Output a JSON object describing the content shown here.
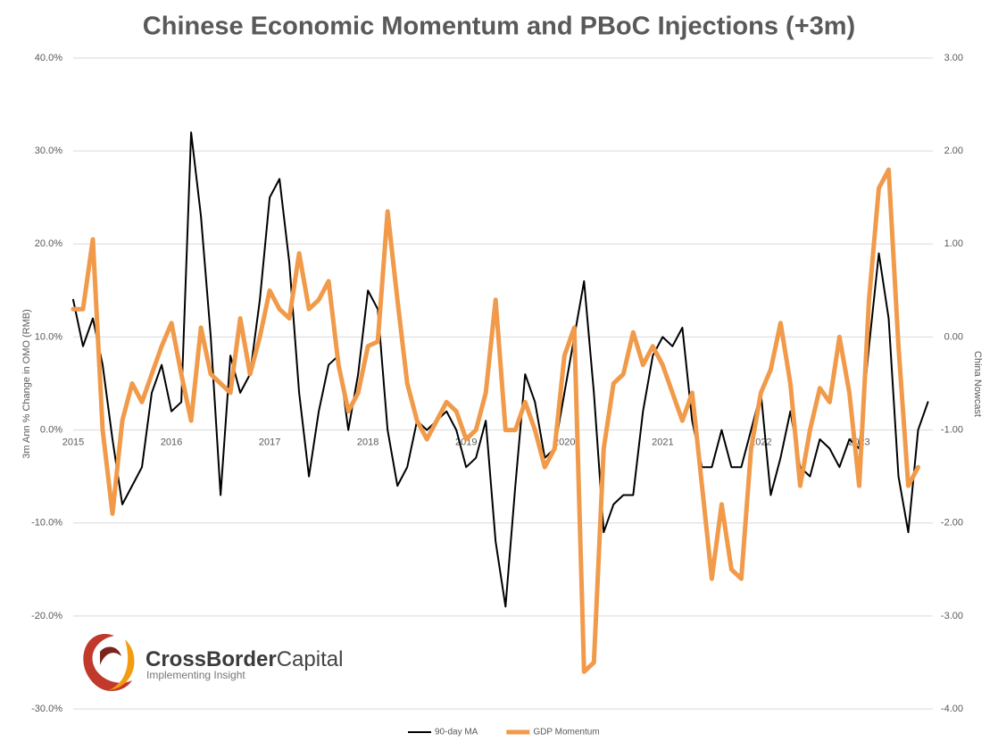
{
  "chart_data": {
    "type": "line",
    "title": "Chinese Economic Momentum and PBoC Injections (+3m)",
    "y_label": "3m Ann % Change in OMO (RMB)",
    "y2_label": "China Nowcast",
    "logo_bold": "CrossBorder",
    "logo_light": "Capital",
    "logo_tagline": "Implementing Insight",
    "grid": true,
    "legend": "bottom",
    "xlim": [
      2015,
      2023.75
    ],
    "xticks": [
      2015,
      2016,
      2017,
      2018,
      2019,
      2020,
      2021,
      2022,
      2023
    ],
    "ylim": [
      -30,
      40
    ],
    "yticks": [
      {
        "value": -30,
        "label": "-30.0%"
      },
      {
        "value": -20,
        "label": "-20.0%"
      },
      {
        "value": -10,
        "label": "-10.0%"
      },
      {
        "value": 0,
        "label": "0.0%"
      },
      {
        "value": 10,
        "label": "10.0%"
      },
      {
        "value": 20,
        "label": "20.0%"
      },
      {
        "value": 30,
        "label": "30.0%"
      },
      {
        "value": 40,
        "label": "40.0%"
      }
    ],
    "y2lim": [
      -4,
      3
    ],
    "y2ticks": [
      {
        "value": -4,
        "label": "-4.00"
      },
      {
        "value": -3,
        "label": "-3.00"
      },
      {
        "value": -2,
        "label": "-2.00"
      },
      {
        "value": -1,
        "label": "-1.00"
      },
      {
        "value": 0,
        "label": "0.00"
      },
      {
        "value": 1,
        "label": "1.00"
      },
      {
        "value": 2,
        "label": "2.00"
      },
      {
        "value": 3,
        "label": "3.00"
      }
    ],
    "x": [
      2015.0,
      2015.1,
      2015.2,
      2015.3,
      2015.4,
      2015.5,
      2015.6,
      2015.7,
      2015.8,
      2015.9,
      2016.0,
      2016.1,
      2016.2,
      2016.3,
      2016.4,
      2016.5,
      2016.6,
      2016.7,
      2016.8,
      2016.9,
      2017.0,
      2017.1,
      2017.2,
      2017.3,
      2017.4,
      2017.5,
      2017.6,
      2017.7,
      2017.8,
      2017.9,
      2018.0,
      2018.1,
      2018.2,
      2018.3,
      2018.4,
      2018.5,
      2018.6,
      2018.7,
      2018.8,
      2018.9,
      2019.0,
      2019.1,
      2019.2,
      2019.3,
      2019.4,
      2019.5,
      2019.6,
      2019.7,
      2019.8,
      2019.9,
      2020.0,
      2020.1,
      2020.2,
      2020.3,
      2020.4,
      2020.5,
      2020.6,
      2020.7,
      2020.8,
      2020.9,
      2021.0,
      2021.1,
      2021.2,
      2021.3,
      2021.4,
      2021.5,
      2021.6,
      2021.7,
      2021.8,
      2021.9,
      2022.0,
      2022.1,
      2022.2,
      2022.3,
      2022.4,
      2022.5,
      2022.6,
      2022.7,
      2022.8,
      2022.9,
      2023.0,
      2023.1,
      2023.2,
      2023.3,
      2023.4,
      2023.5,
      2023.6,
      2023.7
    ],
    "series": [
      {
        "name": "90-day MA",
        "color": "#000000",
        "width": 2,
        "axis": "y",
        "values": [
          14,
          9,
          12,
          7,
          -1,
          -8,
          -6,
          -4,
          4,
          7,
          2,
          3,
          32,
          23,
          10,
          -7,
          8,
          4,
          6,
          14,
          25,
          27,
          18,
          4,
          -5,
          2,
          7,
          8,
          0,
          6,
          15,
          13,
          0,
          -6,
          -4,
          1,
          0,
          1,
          2,
          0,
          -4,
          -3,
          1,
          -12,
          -19,
          -6,
          6,
          3,
          -3,
          -2,
          4,
          10,
          16,
          4,
          -11,
          -8,
          -7,
          -7,
          2,
          8,
          10,
          9,
          11,
          1,
          -4,
          -4,
          0,
          -4,
          -4,
          0,
          4,
          -7,
          -3,
          2,
          -4,
          -5,
          -1,
          -2,
          -4,
          -1,
          -2,
          9,
          19,
          12,
          -5,
          -11,
          0,
          3
        ]
      },
      {
        "name": "GDP Momentum",
        "color": "#f09a4a",
        "width": 5,
        "axis": "y2",
        "values": [
          0.3,
          0.3,
          1.05,
          -1.0,
          -1.9,
          -0.9,
          -0.5,
          -0.7,
          -0.4,
          -0.1,
          0.15,
          -0.4,
          -0.9,
          0.1,
          -0.4,
          -0.5,
          -0.6,
          0.2,
          -0.4,
          0.0,
          0.5,
          0.3,
          0.2,
          0.9,
          0.3,
          0.4,
          0.6,
          -0.3,
          -0.8,
          -0.6,
          -0.1,
          -0.05,
          1.35,
          0.4,
          -0.5,
          -0.9,
          -1.1,
          -0.9,
          -0.7,
          -0.8,
          -1.1,
          -1.0,
          -0.6,
          0.4,
          -1.0,
          -1.0,
          -0.7,
          -1.0,
          -1.4,
          -1.2,
          -0.2,
          0.1,
          -3.6,
          -3.5,
          -1.2,
          -0.5,
          -0.4,
          0.05,
          -0.3,
          -0.1,
          -0.3,
          -0.6,
          -0.9,
          -0.6,
          -1.6,
          -2.6,
          -1.8,
          -2.5,
          -2.6,
          -1.2,
          -0.6,
          -0.35,
          0.15,
          -0.5,
          -1.6,
          -1.0,
          -0.55,
          -0.7,
          0.0,
          -0.6,
          -1.6,
          0.4,
          1.6,
          1.8,
          -0.1,
          -1.6,
          -1.4,
          null
        ]
      }
    ]
  }
}
